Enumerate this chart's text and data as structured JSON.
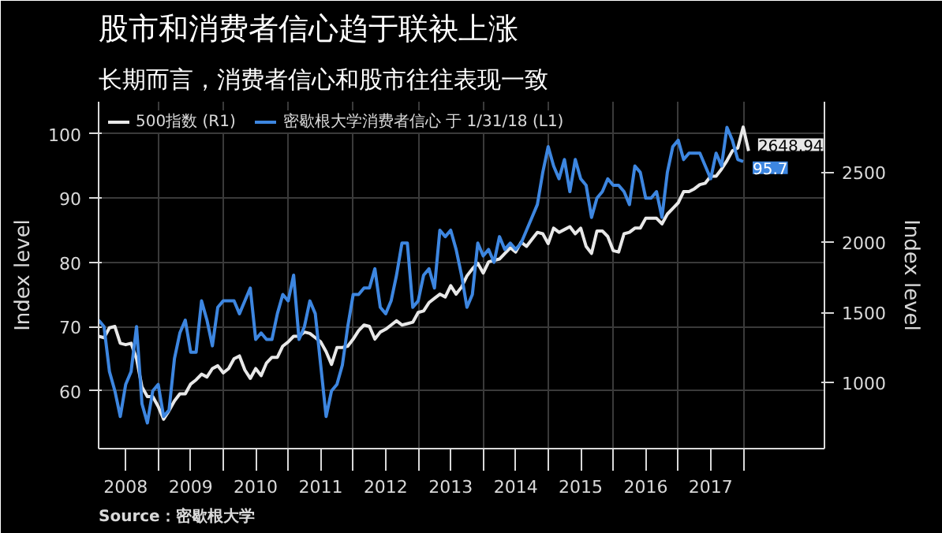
{
  "chart_data": {
    "type": "line",
    "title": "股市和消费者信心趋于联袂上涨",
    "subtitle": "长期而言，消费者信心和股市往往表现一致",
    "ylabel": "Index level",
    "y2label": "Index level",
    "annotations": [
      "Source：密歇根大学"
    ],
    "x": [
      "2008-02",
      "2008-03",
      "2008-04",
      "2008-05",
      "2008-06",
      "2008-07",
      "2008-08",
      "2008-09",
      "2008-10",
      "2008-11",
      "2008-12",
      "2009-01",
      "2009-02",
      "2009-03",
      "2009-04",
      "2009-05",
      "2009-06",
      "2009-07",
      "2009-08",
      "2009-09",
      "2009-10",
      "2009-11",
      "2009-12",
      "2010-01",
      "2010-02",
      "2010-03",
      "2010-04",
      "2010-05",
      "2010-06",
      "2010-07",
      "2010-08",
      "2010-09",
      "2010-10",
      "2010-11",
      "2010-12",
      "2011-01",
      "2011-02",
      "2011-03",
      "2011-04",
      "2011-05",
      "2011-06",
      "2011-07",
      "2011-08",
      "2011-09",
      "2011-10",
      "2011-11",
      "2011-12",
      "2012-01",
      "2012-02",
      "2012-03",
      "2012-04",
      "2012-05",
      "2012-06",
      "2012-07",
      "2012-08",
      "2012-09",
      "2012-10",
      "2012-11",
      "2012-12",
      "2013-01",
      "2013-02",
      "2013-03",
      "2013-04",
      "2013-05",
      "2013-06",
      "2013-07",
      "2013-08",
      "2013-09",
      "2013-10",
      "2013-11",
      "2013-12",
      "2014-01",
      "2014-02",
      "2014-03",
      "2014-04",
      "2014-05",
      "2014-06",
      "2014-07",
      "2014-08",
      "2014-09",
      "2014-10",
      "2014-11",
      "2014-12",
      "2015-01",
      "2015-02",
      "2015-03",
      "2015-04",
      "2015-05",
      "2015-06",
      "2015-07",
      "2015-08",
      "2015-09",
      "2015-10",
      "2015-11",
      "2015-12",
      "2016-01",
      "2016-02",
      "2016-03",
      "2016-04",
      "2016-05",
      "2016-06",
      "2016-07",
      "2016-08",
      "2016-09",
      "2016-10",
      "2016-11",
      "2016-12",
      "2017-01",
      "2017-02",
      "2017-03",
      "2017-04",
      "2017-05",
      "2017-06",
      "2017-07",
      "2017-08",
      "2017-09",
      "2017-10",
      "2017-11",
      "2017-12",
      "2018-01",
      "2018-02"
    ],
    "series": [
      {
        "name": "500指数 (R1)",
        "color": "#e8e8e8",
        "axis": "y2",
        "value_labels": [
          null,
          null,
          null,
          null,
          null,
          null,
          null,
          null,
          null,
          null,
          null,
          null,
          null,
          null,
          null,
          null,
          null,
          null,
          null,
          null,
          null,
          null,
          null,
          null,
          null,
          null,
          null,
          null,
          null,
          null,
          null,
          null,
          null,
          null,
          null,
          null,
          null,
          null,
          null,
          null,
          null,
          null,
          null,
          null,
          null,
          null,
          null,
          null,
          null,
          null,
          null,
          null,
          null,
          null,
          null,
          null,
          null,
          null,
          null,
          null,
          null,
          null,
          null,
          null,
          null,
          null,
          null,
          null,
          null,
          null,
          null,
          null,
          null,
          null,
          null,
          null,
          null,
          null,
          null,
          null,
          null,
          null,
          null,
          null,
          null,
          null,
          null,
          null,
          null,
          null,
          null,
          null,
          null,
          null,
          null,
          null,
          null,
          null,
          null,
          null,
          null,
          null,
          null,
          null,
          null,
          null,
          null,
          null,
          null,
          null,
          null,
          null,
          null,
          null,
          null,
          null,
          null,
          null,
          null,
          null,
          "2648.94"
        ],
        "values": [
          1330,
          1320,
          1390,
          1400,
          1280,
          1270,
          1280,
          1170,
          970,
          900,
          900,
          830,
          740,
          800,
          870,
          920,
          920,
          990,
          1020,
          1060,
          1040,
          1100,
          1120,
          1070,
          1100,
          1170,
          1190,
          1090,
          1030,
          1100,
          1050,
          1140,
          1180,
          1180,
          1260,
          1290,
          1330,
          1330,
          1360,
          1350,
          1320,
          1290,
          1220,
          1130,
          1250,
          1250,
          1260,
          1310,
          1370,
          1410,
          1400,
          1310,
          1360,
          1380,
          1410,
          1440,
          1410,
          1420,
          1430,
          1500,
          1510,
          1570,
          1600,
          1630,
          1610,
          1690,
          1630,
          1680,
          1760,
          1810,
          1850,
          1780,
          1860,
          1870,
          1880,
          1920,
          1960,
          1930,
          2000,
          1970,
          2020,
          2070,
          2060,
          1990,
          2100,
          2070,
          2090,
          2110,
          2060,
          2100,
          1970,
          1920,
          2080,
          2080,
          2040,
          1940,
          1930,
          2060,
          2070,
          2100,
          2100,
          2170,
          2170,
          2170,
          2130,
          2200,
          2240,
          2280,
          2360,
          2360,
          2380,
          2410,
          2420,
          2470,
          2470,
          2520,
          2580,
          2650,
          2670,
          2820,
          2648.94
        ]
      },
      {
        "name": "密歇根大学消费者信心 于 1/31/18 (L1)",
        "color": "#3d86e0",
        "value_labels": [
          null,
          null,
          null,
          null,
          null,
          null,
          null,
          null,
          null,
          null,
          null,
          null,
          null,
          null,
          null,
          null,
          null,
          null,
          null,
          null,
          null,
          null,
          null,
          null,
          null,
          null,
          null,
          null,
          null,
          null,
          null,
          null,
          null,
          null,
          null,
          null,
          null,
          null,
          null,
          null,
          null,
          null,
          null,
          null,
          null,
          null,
          null,
          null,
          null,
          null,
          null,
          null,
          null,
          null,
          null,
          null,
          null,
          null,
          null,
          null,
          null,
          null,
          null,
          null,
          null,
          null,
          null,
          null,
          null,
          null,
          null,
          null,
          null,
          null,
          null,
          null,
          null,
          null,
          null,
          null,
          null,
          null,
          null,
          null,
          null,
          null,
          null,
          null,
          null,
          null,
          null,
          null,
          null,
          null,
          null,
          null,
          null,
          null,
          null,
          null,
          null,
          null,
          null,
          null,
          null,
          null,
          null,
          null,
          null,
          null,
          null,
          null,
          null,
          null,
          null,
          null,
          null,
          null,
          null,
          "95.7",
          null
        ],
        "values": [
          71,
          70,
          63,
          60,
          56,
          61,
          63,
          70,
          58,
          55,
          60,
          61,
          56,
          57,
          65,
          69,
          71,
          66,
          66,
          74,
          71,
          67,
          73,
          74,
          74,
          74,
          72,
          74,
          76,
          68,
          69,
          68,
          68,
          72,
          75,
          74,
          78,
          68,
          70,
          74,
          72,
          64,
          56,
          60,
          61,
          64,
          70,
          75,
          75,
          76,
          76,
          79,
          73,
          72,
          74,
          78,
          83,
          83,
          73,
          74,
          78,
          79,
          76,
          85,
          84,
          85,
          82,
          78,
          73,
          75,
          83,
          81,
          82,
          80,
          84,
          82,
          83,
          82,
          83,
          85,
          87,
          89,
          94,
          98,
          95,
          93,
          96,
          91,
          96,
          93,
          92,
          87,
          90,
          91,
          93,
          92,
          92,
          91,
          89,
          95,
          94,
          90,
          90,
          91,
          87,
          94,
          98,
          99,
          96,
          97,
          97,
          97,
          95,
          93,
          97,
          95,
          101,
          99,
          96,
          95.7,
          null
        ]
      }
    ],
    "xlim": [
      "2008-02",
      "2019-04"
    ],
    "xticks": [
      {
        "value": "2009",
        "label": null
      },
      {
        "value": "2010",
        "label": null
      },
      {
        "value": "2011",
        "label": null
      },
      {
        "value": "2012",
        "label": null
      },
      {
        "value": "2013",
        "label": null
      },
      {
        "value": "2014",
        "label": null
      },
      {
        "value": "2015",
        "label": null
      },
      {
        "value": "2016",
        "label": null
      },
      {
        "value": "2017",
        "label": null
      },
      {
        "value": "2018",
        "label": null
      },
      {
        "value": "2008-07",
        "label": "2008"
      },
      {
        "value": "2009-07",
        "label": "2009"
      },
      {
        "value": "2010-07",
        "label": "2010"
      },
      {
        "value": "2011-07",
        "label": "2011"
      },
      {
        "value": "2012-07",
        "label": "2012"
      },
      {
        "value": "2013-07",
        "label": "2013"
      },
      {
        "value": "2014-07",
        "label": "2014"
      },
      {
        "value": "2015-07",
        "label": "2015"
      },
      {
        "value": "2016-07",
        "label": "2016"
      },
      {
        "value": "2017-07",
        "label": "2017"
      }
    ],
    "ylim": [
      51,
      105
    ],
    "yticks": [
      60,
      70,
      80,
      90,
      100
    ],
    "y2lim": [
      530,
      3000
    ],
    "y2ticks": [
      1000,
      1500,
      2000,
      2500
    ],
    "grid": true,
    "legend": "top left"
  }
}
